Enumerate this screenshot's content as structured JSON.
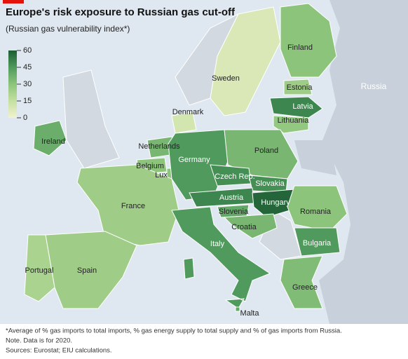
{
  "title": "Europe's risk exposure to Russian gas cut-off",
  "subtitle": "(Russian gas vulnerability index*)",
  "legend": {
    "range": [
      0,
      60
    ],
    "ticks": [
      0,
      15,
      30,
      45,
      60
    ],
    "colors": [
      "#f1f2cf",
      "#c4e0a0",
      "#8cc47c",
      "#4f9a5c",
      "#1d5e34"
    ]
  },
  "regions": [
    {
      "name": "Finland",
      "value": 30
    },
    {
      "name": "Sweden",
      "value": 8
    },
    {
      "name": "Estonia",
      "value": 25
    },
    {
      "name": "Latvia",
      "value": 50
    },
    {
      "name": "Lithuania",
      "value": 28
    },
    {
      "name": "Denmark",
      "value": 10
    },
    {
      "name": "Ireland",
      "value": 38
    },
    {
      "name": "Netherlands",
      "value": 35
    },
    {
      "name": "Belgium",
      "value": 30
    },
    {
      "name": "Lux",
      "value": 30
    },
    {
      "name": "Germany",
      "value": 45
    },
    {
      "name": "Poland",
      "value": 35
    },
    {
      "name": "Czech Rep.",
      "value": 48
    },
    {
      "name": "Slovakia",
      "value": 48
    },
    {
      "name": "Austria",
      "value": 50
    },
    {
      "name": "Hungary",
      "value": 58
    },
    {
      "name": "Slovenia",
      "value": 40
    },
    {
      "name": "Croatia",
      "value": 35
    },
    {
      "name": "France",
      "value": 25
    },
    {
      "name": "Romania",
      "value": 30
    },
    {
      "name": "Bulgaria",
      "value": 45
    },
    {
      "name": "Italy",
      "value": 45
    },
    {
      "name": "Portugal",
      "value": 22
    },
    {
      "name": "Spain",
      "value": 25
    },
    {
      "name": "Greece",
      "value": 33
    },
    {
      "name": "Malta",
      "value": 40
    }
  ],
  "other_label": "Russia",
  "notes": [
    "*Average of % gas imports to total imports, % gas energy supply to total supply and % of gas imports from Russia.",
    "Note. Data is for 2020.",
    "Sources: Eurostat; EIU calculations."
  ]
}
